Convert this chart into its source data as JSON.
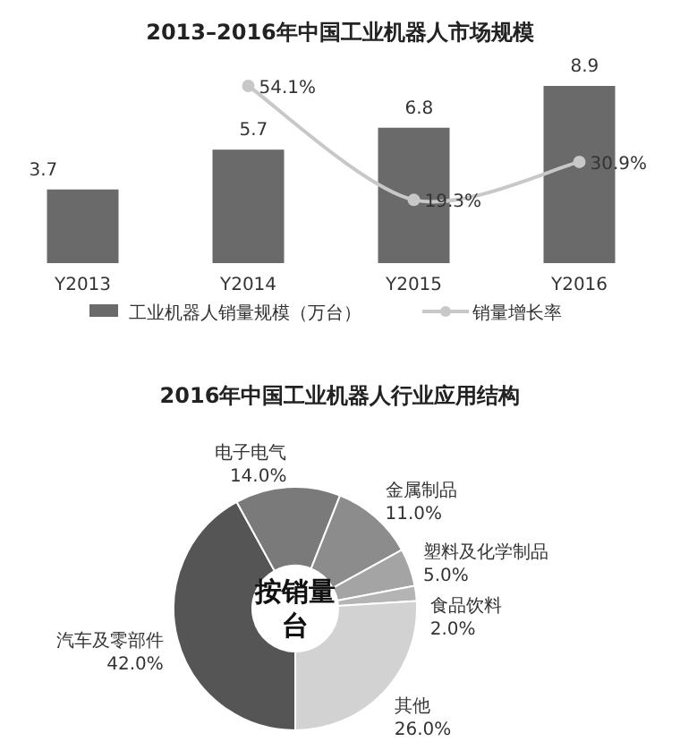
{
  "chart_data": [
    {
      "type": "bar",
      "title": "2013–2016年中国工业机器人市场规模",
      "categories": [
        "Y2013",
        "Y2014",
        "Y2015",
        "Y2016"
      ],
      "legend": "bottom",
      "marker": "circle",
      "series": [
        {
          "name": "工业机器人销量规模（万台）",
          "type": "bar",
          "color": "#6a6a6a",
          "values": [
            3.7,
            5.7,
            6.8,
            8.9
          ],
          "value_labels": [
            "3.7",
            "5.7",
            "6.8",
            "8.9"
          ]
        },
        {
          "name": "销量增长率",
          "type": "line",
          "axis": "y2",
          "color": "#c8c8c8",
          "values": [
            null,
            54.1,
            19.3,
            30.9
          ],
          "value_labels": [
            null,
            "54.1%",
            "19.3%",
            "30.9%"
          ]
        }
      ]
    },
    {
      "type": "donut",
      "title": "2016年中国工业机器人行业应用结构",
      "categories": [
        "汽车及零部件",
        "电子电气",
        "金属制品",
        "塑料及化学制品",
        "食品饮料",
        "其他"
      ],
      "values": [
        42,
        14,
        11,
        5,
        2,
        26
      ],
      "colors": [
        "#555555",
        "#7a7a7a",
        "#8c8c8c",
        "#a4a4a4",
        "#b4b4b4",
        "#d2d2d2"
      ],
      "value_labels": [
        "42.0%",
        "14.0%",
        "11.0%",
        "5.0%",
        "2.0%",
        "26.0%"
      ],
      "annotations": [
        "按销量台"
      ]
    }
  ]
}
